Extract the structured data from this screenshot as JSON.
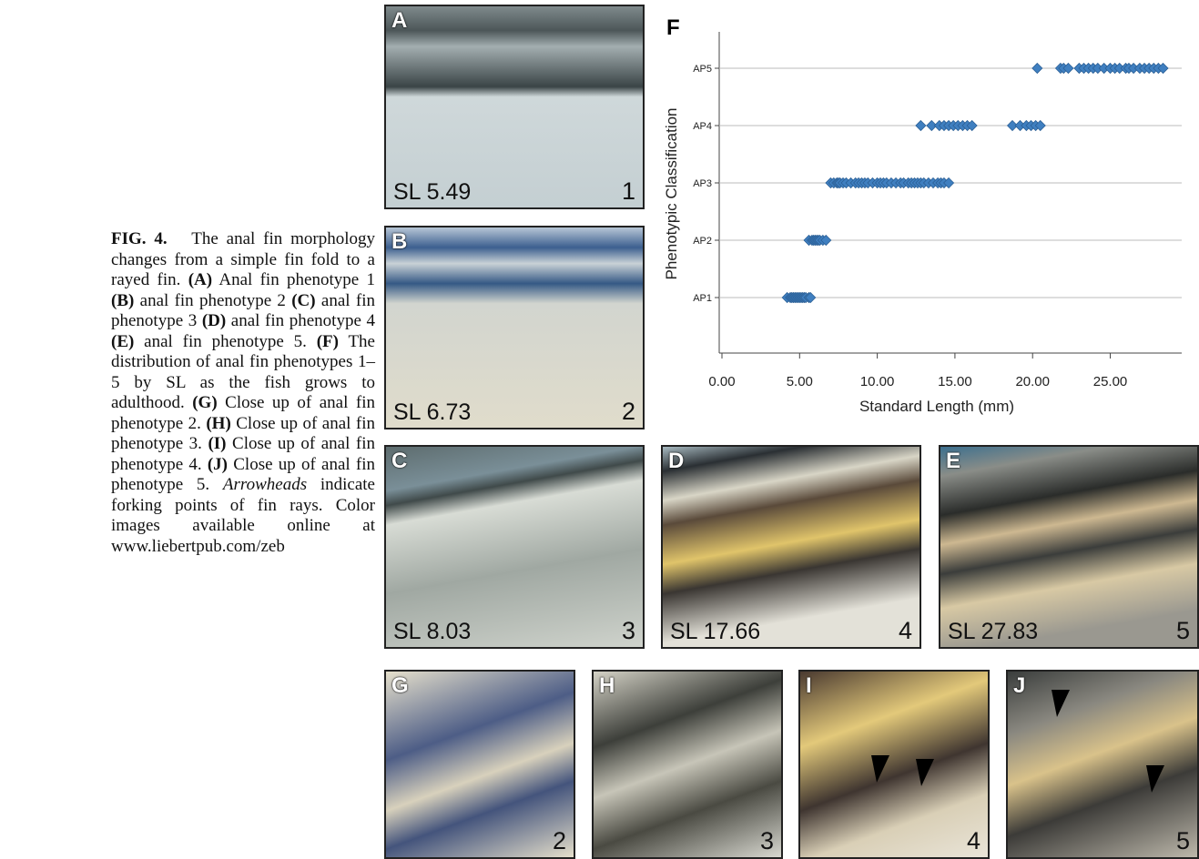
{
  "caption": {
    "label": "FIG. 4.",
    "parts": [
      {
        "text": "The anal fin morphology changes from a simple fin fold to a rayed fin. ",
        "style": "normal"
      },
      {
        "text": "(A)",
        "style": "bold"
      },
      {
        "text": " Anal fin phenotype 1 ",
        "style": "normal"
      },
      {
        "text": "(B)",
        "style": "bold"
      },
      {
        "text": " anal fin phenotype 2 ",
        "style": "normal"
      },
      {
        "text": "(C)",
        "style": "bold"
      },
      {
        "text": " anal fin phenotype 3 ",
        "style": "normal"
      },
      {
        "text": "(D)",
        "style": "bold"
      },
      {
        "text": " anal fin phenotype 4 ",
        "style": "normal"
      },
      {
        "text": "(E)",
        "style": "bold"
      },
      {
        "text": " anal fin phenotype 5. ",
        "style": "normal"
      },
      {
        "text": "(F)",
        "style": "bold"
      },
      {
        "text": " The distribution of anal fin phenotypes 1–5 by SL as the fish grows to adulthood. ",
        "style": "normal"
      },
      {
        "text": "(G)",
        "style": "bold"
      },
      {
        "text": " Close up of anal fin phenotype 2. ",
        "style": "normal"
      },
      {
        "text": "(H)",
        "style": "bold"
      },
      {
        "text": " Close up of anal fin phenotype 3. ",
        "style": "normal"
      },
      {
        "text": "(I)",
        "style": "bold"
      },
      {
        "text": " Close up of anal fin phenotype 4. ",
        "style": "normal"
      },
      {
        "text": "(J)",
        "style": "bold"
      },
      {
        "text": " Close up of anal fin phenotype 5. ",
        "style": "normal"
      },
      {
        "text": "Arrowheads",
        "style": "italic"
      },
      {
        "text": " indicate forking points of fin rays. Color images available online at www.liebertpub.com/zeb",
        "style": "normal"
      }
    ]
  },
  "panels": [
    {
      "letter": "A",
      "sl": "SL 5.49",
      "number": "1"
    },
    {
      "letter": "B",
      "sl": "SL 6.73",
      "number": "2"
    },
    {
      "letter": "C",
      "sl": "SL 8.03",
      "number": "3"
    },
    {
      "letter": "D",
      "sl": "SL 17.66",
      "number": "4"
    },
    {
      "letter": "E",
      "sl": "SL 27.83",
      "number": "5"
    },
    {
      "letter": "G",
      "number": "2"
    },
    {
      "letter": "H",
      "number": "3"
    },
    {
      "letter": "I",
      "number": "4"
    },
    {
      "letter": "J",
      "number": "5"
    }
  ],
  "chart_data": {
    "type": "scatter",
    "panel_label": "F",
    "xlabel": "Standard Length (mm)",
    "ylabel": "Phenotypic Classification",
    "categories": [
      "AP1",
      "AP2",
      "AP3",
      "AP4",
      "AP5"
    ],
    "x": [
      [
        4.2,
        4.4,
        4.5,
        4.6,
        4.7,
        4.8,
        4.9,
        5.0,
        5.1,
        5.2,
        5.3,
        5.4,
        5.6,
        5.7
      ],
      [
        5.6,
        5.8,
        5.9,
        6.0,
        6.1,
        6.2,
        6.3,
        6.5,
        6.7
      ],
      [
        7.0,
        7.2,
        7.4,
        7.5,
        7.6,
        7.8,
        8.0,
        8.3,
        8.6,
        8.8,
        9.0,
        9.2,
        9.4,
        9.7,
        10.0,
        10.2,
        10.4,
        10.6,
        10.9,
        11.2,
        11.5,
        11.7,
        12.0,
        12.2,
        12.4,
        12.6,
        12.8,
        13.0,
        13.3,
        13.6,
        13.9,
        14.1,
        14.3,
        14.6
      ],
      [
        12.8,
        13.5,
        14.0,
        14.3,
        14.6,
        14.9,
        15.2,
        15.5,
        15.8,
        16.1,
        18.7,
        19.2,
        19.6,
        19.9,
        20.2,
        20.5
      ],
      [
        20.3,
        21.8,
        22.0,
        22.3,
        23.0,
        23.3,
        23.6,
        23.9,
        24.2,
        24.6,
        25.0,
        25.3,
        25.6,
        26.0,
        26.2,
        26.5,
        26.9,
        27.2,
        27.5,
        27.8,
        28.1,
        28.4
      ]
    ],
    "color": "#3f7fc0",
    "xlim": [
      0,
      29.6
    ],
    "xticks": [
      {
        "value": 0,
        "label": "0.00"
      },
      {
        "value": 5,
        "label": "5.00"
      },
      {
        "value": 10,
        "label": "10.00"
      },
      {
        "value": 15,
        "label": "15.00"
      },
      {
        "value": 20,
        "label": "20.00"
      },
      {
        "value": 25,
        "label": "25.00"
      }
    ],
    "grid": true
  }
}
